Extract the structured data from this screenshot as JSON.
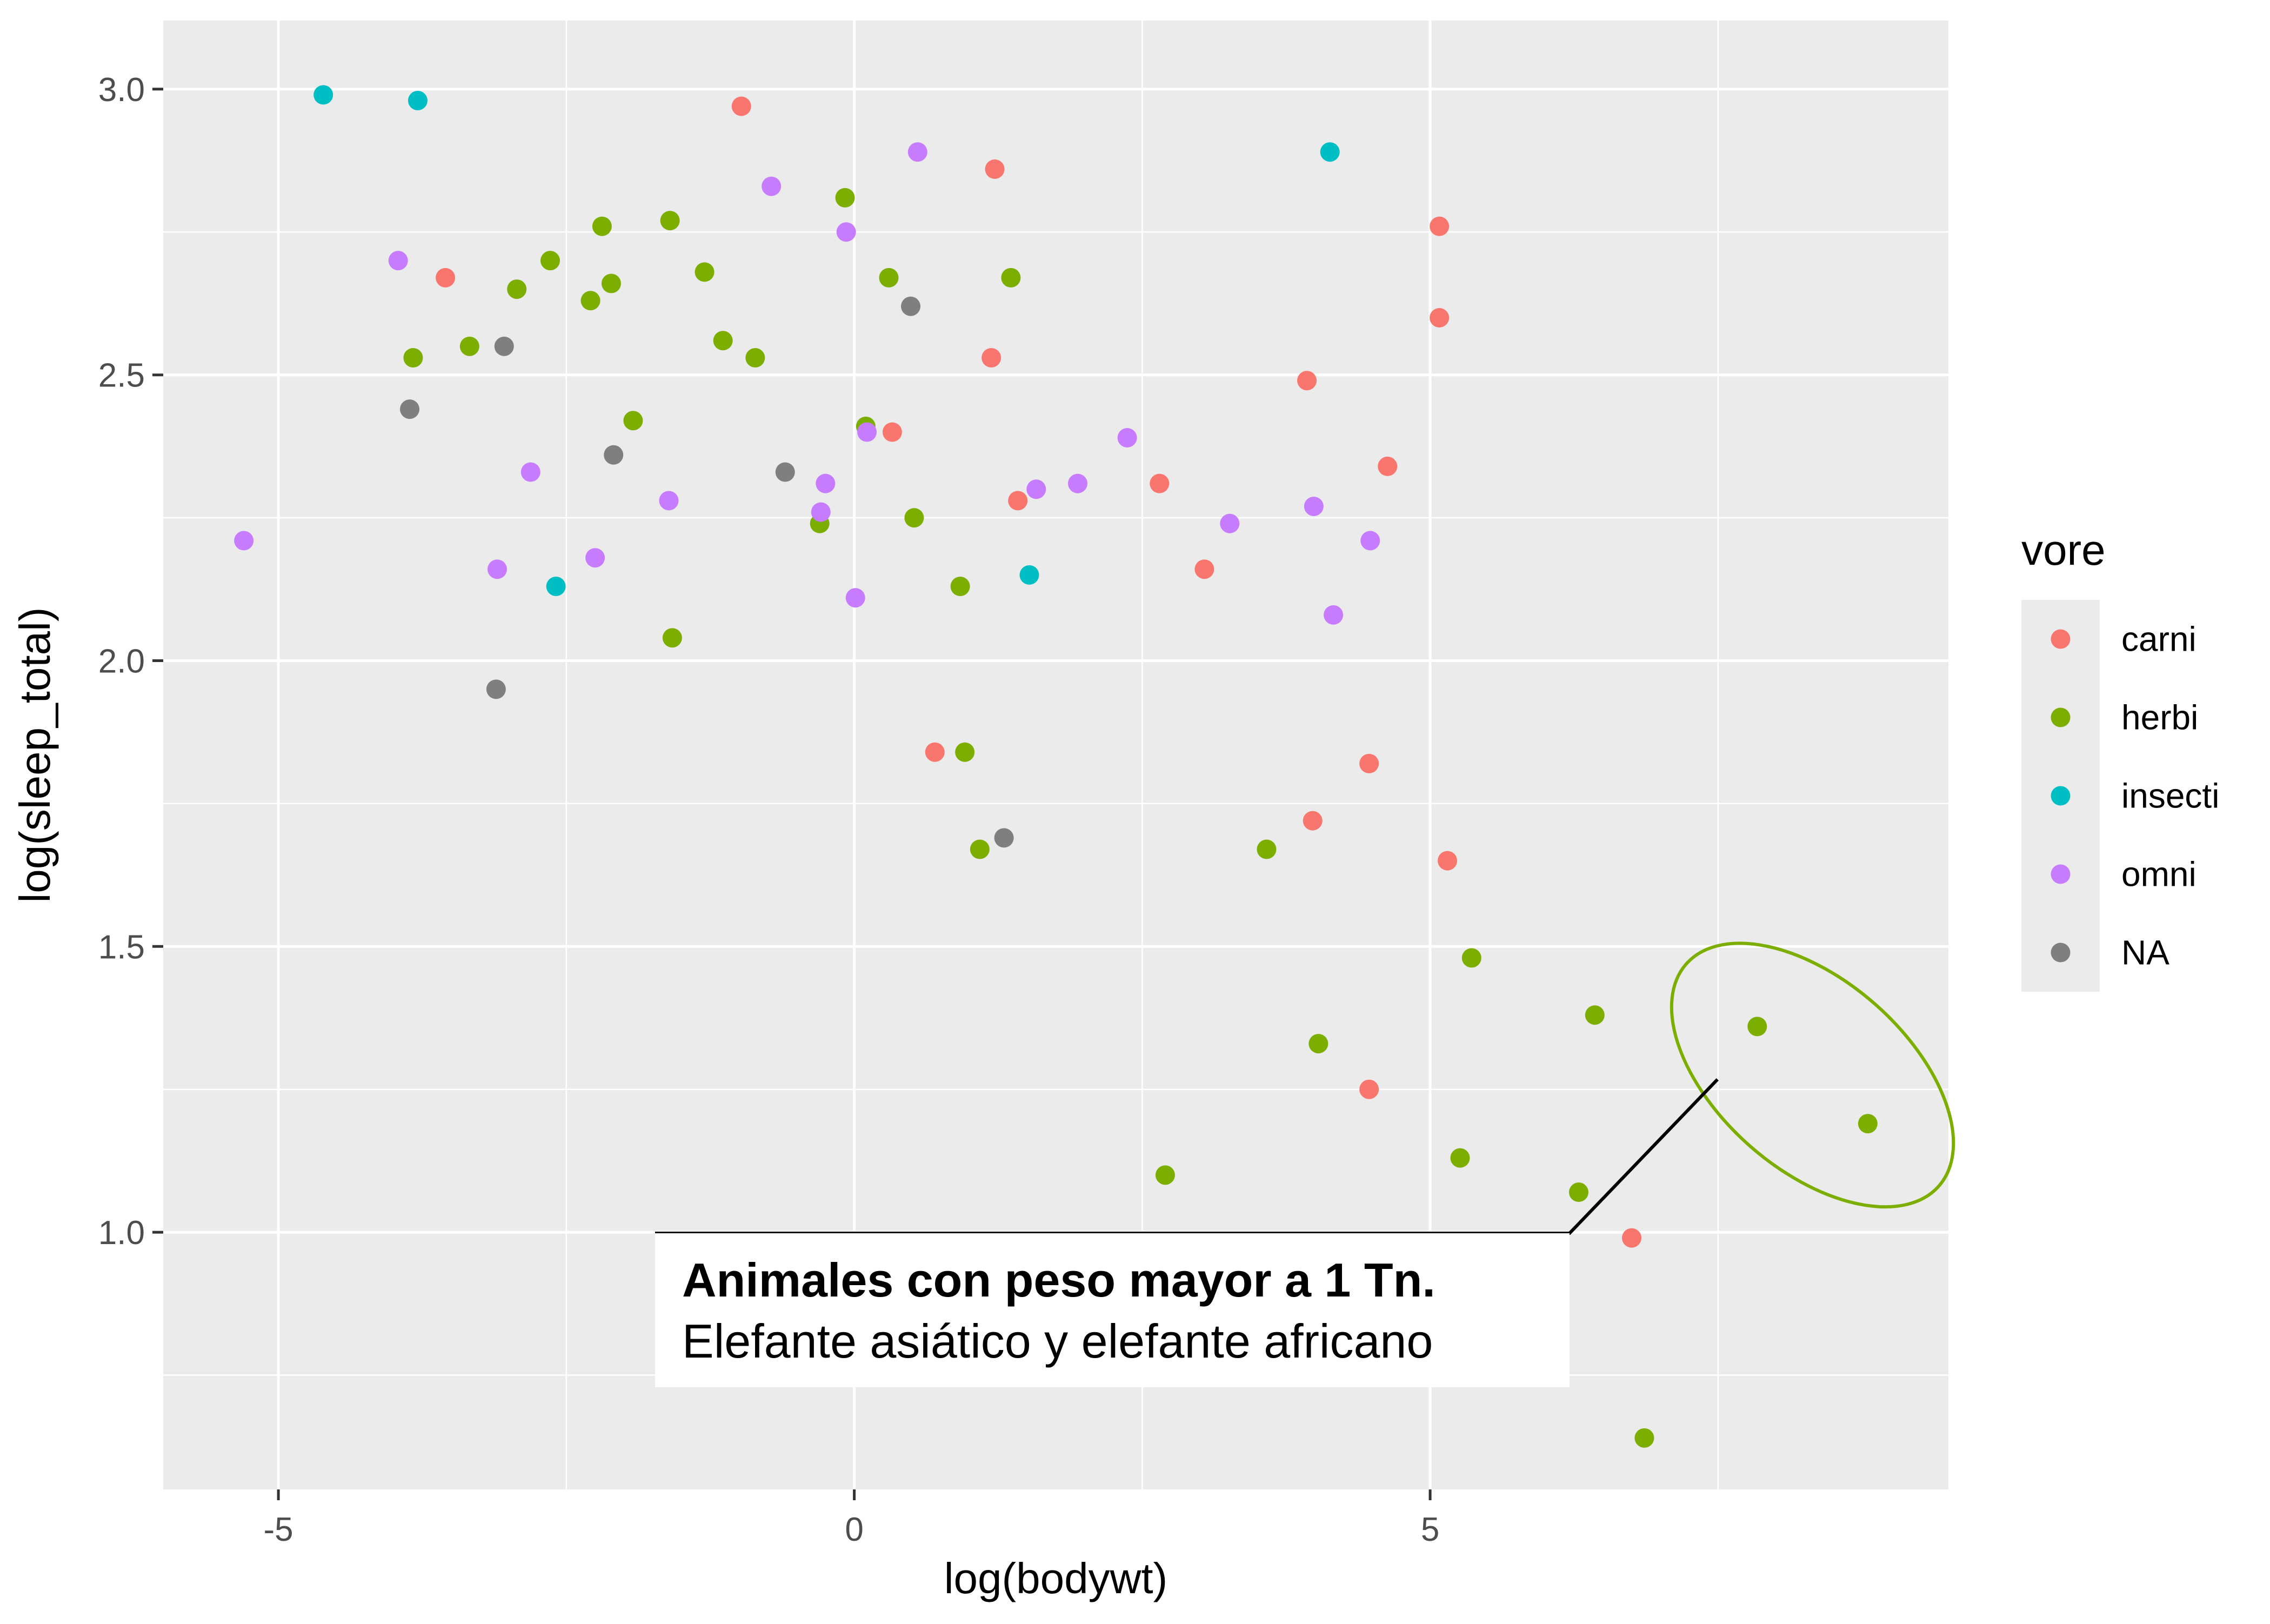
{
  "chart_data": {
    "type": "scatter",
    "title": "",
    "xlabel": "log(bodywt)",
    "ylabel": "log(sleep_total)",
    "xlim": [
      -6.0,
      9.5
    ],
    "ylim": [
      0.55,
      3.12
    ],
    "x_ticks": [
      -5,
      0,
      5
    ],
    "x_tick_labels": [
      "-5",
      "0",
      "5"
    ],
    "y_ticks": [
      1.0,
      1.5,
      2.0,
      2.5,
      3.0
    ],
    "y_tick_labels": [
      "1.0",
      "1.5",
      "2.0",
      "2.5",
      "3.0"
    ],
    "grid": true,
    "legend_title": "vore",
    "legend_position": "right",
    "series": [
      {
        "name": "carni",
        "color": "#F8766D",
        "points": [
          [
            -3.55,
            2.67
          ],
          [
            -0.98,
            2.97
          ],
          [
            0.33,
            2.4
          ],
          [
            0.7,
            1.84
          ],
          [
            1.22,
            2.86
          ],
          [
            1.19,
            2.53
          ],
          [
            1.42,
            2.28
          ],
          [
            2.65,
            2.31
          ],
          [
            3.04,
            2.16
          ],
          [
            3.93,
            2.49
          ],
          [
            3.98,
            1.72
          ],
          [
            4.47,
            1.82
          ],
          [
            4.47,
            1.25
          ],
          [
            4.63,
            2.34
          ],
          [
            5.08,
            2.76
          ],
          [
            5.08,
            2.6
          ],
          [
            5.15,
            1.65
          ],
          [
            6.75,
            0.99
          ]
        ]
      },
      {
        "name": "herbi",
        "color": "#7CAE00",
        "points": [
          [
            -3.83,
            2.53
          ],
          [
            -3.34,
            2.55
          ],
          [
            -2.93,
            2.65
          ],
          [
            -2.64,
            2.7
          ],
          [
            -2.29,
            2.63
          ],
          [
            -2.19,
            2.76
          ],
          [
            -2.11,
            2.66
          ],
          [
            -1.92,
            2.42
          ],
          [
            -1.6,
            2.77
          ],
          [
            -1.58,
            2.04
          ],
          [
            -1.3,
            2.68
          ],
          [
            -1.14,
            2.56
          ],
          [
            -0.86,
            2.53
          ],
          [
            -0.3,
            2.24
          ],
          [
            -0.08,
            2.81
          ],
          [
            0.1,
            2.41
          ],
          [
            0.3,
            2.67
          ],
          [
            0.52,
            2.25
          ],
          [
            0.92,
            2.13
          ],
          [
            0.96,
            1.84
          ],
          [
            1.09,
            1.67
          ],
          [
            1.36,
            2.67
          ],
          [
            2.7,
            1.1
          ],
          [
            3.58,
            1.67
          ],
          [
            4.03,
            1.33
          ],
          [
            5.26,
            1.13
          ],
          [
            5.36,
            1.48
          ],
          [
            6.29,
            1.07
          ],
          [
            6.43,
            1.38
          ],
          [
            6.86,
            0.64
          ],
          [
            7.84,
            1.36
          ],
          [
            8.8,
            1.19
          ]
        ]
      },
      {
        "name": "insecti",
        "color": "#00BFC4",
        "points": [
          [
            -4.61,
            2.99
          ],
          [
            -3.79,
            2.98
          ],
          [
            -2.59,
            2.13
          ],
          [
            1.52,
            2.15
          ],
          [
            4.13,
            2.89
          ]
        ]
      },
      {
        "name": "omni",
        "color": "#C77CFF",
        "points": [
          [
            -5.3,
            2.21
          ],
          [
            -3.96,
            2.7
          ],
          [
            -3.1,
            2.16
          ],
          [
            -2.81,
            2.33
          ],
          [
            -2.25,
            2.18
          ],
          [
            -1.61,
            2.28
          ],
          [
            -0.72,
            2.83
          ],
          [
            -0.29,
            2.26
          ],
          [
            -0.25,
            2.31
          ],
          [
            -0.07,
            2.75
          ],
          [
            0.01,
            2.11
          ],
          [
            0.11,
            2.4
          ],
          [
            0.55,
            2.89
          ],
          [
            1.58,
            2.3
          ],
          [
            1.94,
            2.31
          ],
          [
            2.37,
            2.39
          ],
          [
            3.26,
            2.24
          ],
          [
            3.99,
            2.27
          ],
          [
            4.16,
            2.08
          ],
          [
            4.48,
            2.21
          ]
        ]
      },
      {
        "name": "NA",
        "color": "#7F7F7F",
        "points": [
          [
            -3.86,
            2.44
          ],
          [
            -3.11,
            1.95
          ],
          [
            -3.04,
            2.55
          ],
          [
            -2.09,
            2.36
          ],
          [
            -0.6,
            2.33
          ],
          [
            0.49,
            2.62
          ],
          [
            1.3,
            1.69
          ]
        ]
      }
    ],
    "annotation": {
      "title": "Animales con peso mayor a 1 Tn.",
      "label": "Elefante asiático y elefante africano",
      "highlight_color": "#7CAE00",
      "highlight_points": [
        [
          7.84,
          1.36
        ],
        [
          8.8,
          1.19
        ]
      ]
    }
  }
}
